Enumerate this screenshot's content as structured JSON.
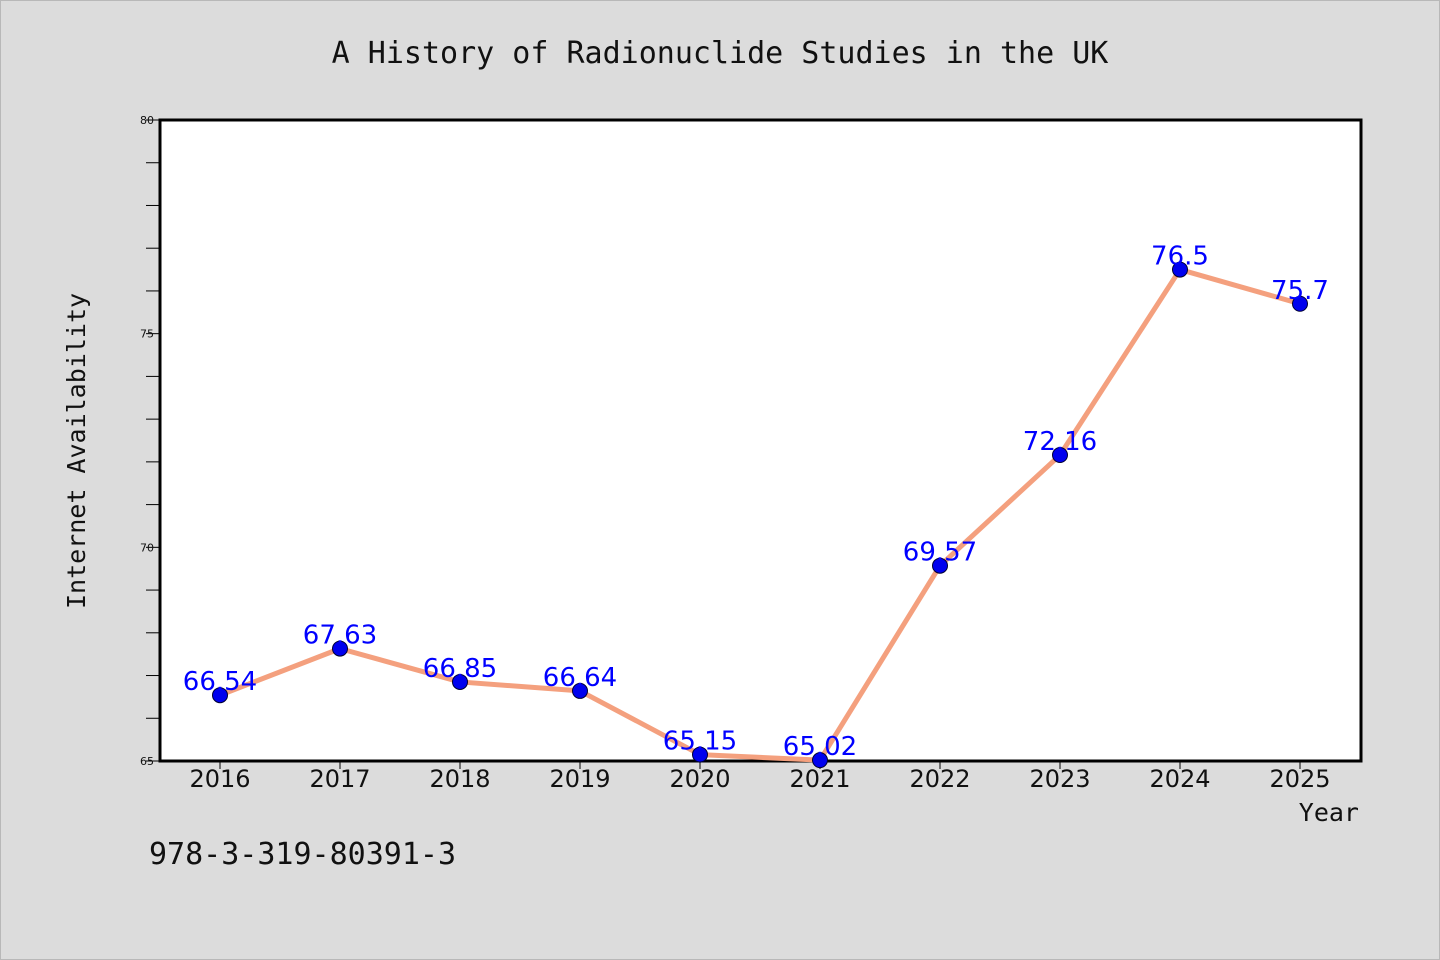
{
  "chart_data": {
    "type": "line",
    "title": "A History of Radionuclide Studies in the UK",
    "xlabel": "Year",
    "ylabel": "Internet Availability",
    "categories": [
      "2016",
      "2017",
      "2018",
      "2019",
      "2020",
      "2021",
      "2022",
      "2023",
      "2024",
      "2025"
    ],
    "values": [
      66.54,
      67.63,
      66.85,
      66.64,
      65.15,
      65.02,
      69.57,
      72.16,
      76.5,
      75.7
    ],
    "data_labels": [
      "66.54",
      "67.63",
      "66.85",
      "66.64",
      "65.15",
      "65.02",
      "69.57",
      "72.16",
      "76.5",
      "75.7"
    ],
    "ylim": [
      65,
      80
    ],
    "yticks": [
      65,
      70,
      75,
      80
    ],
    "grid": false,
    "line_color": "#f4a07e",
    "marker_color": "#0000ee",
    "label_color": "#0000ff"
  },
  "footer": {
    "isbn": "978-3-319-80391-3"
  }
}
